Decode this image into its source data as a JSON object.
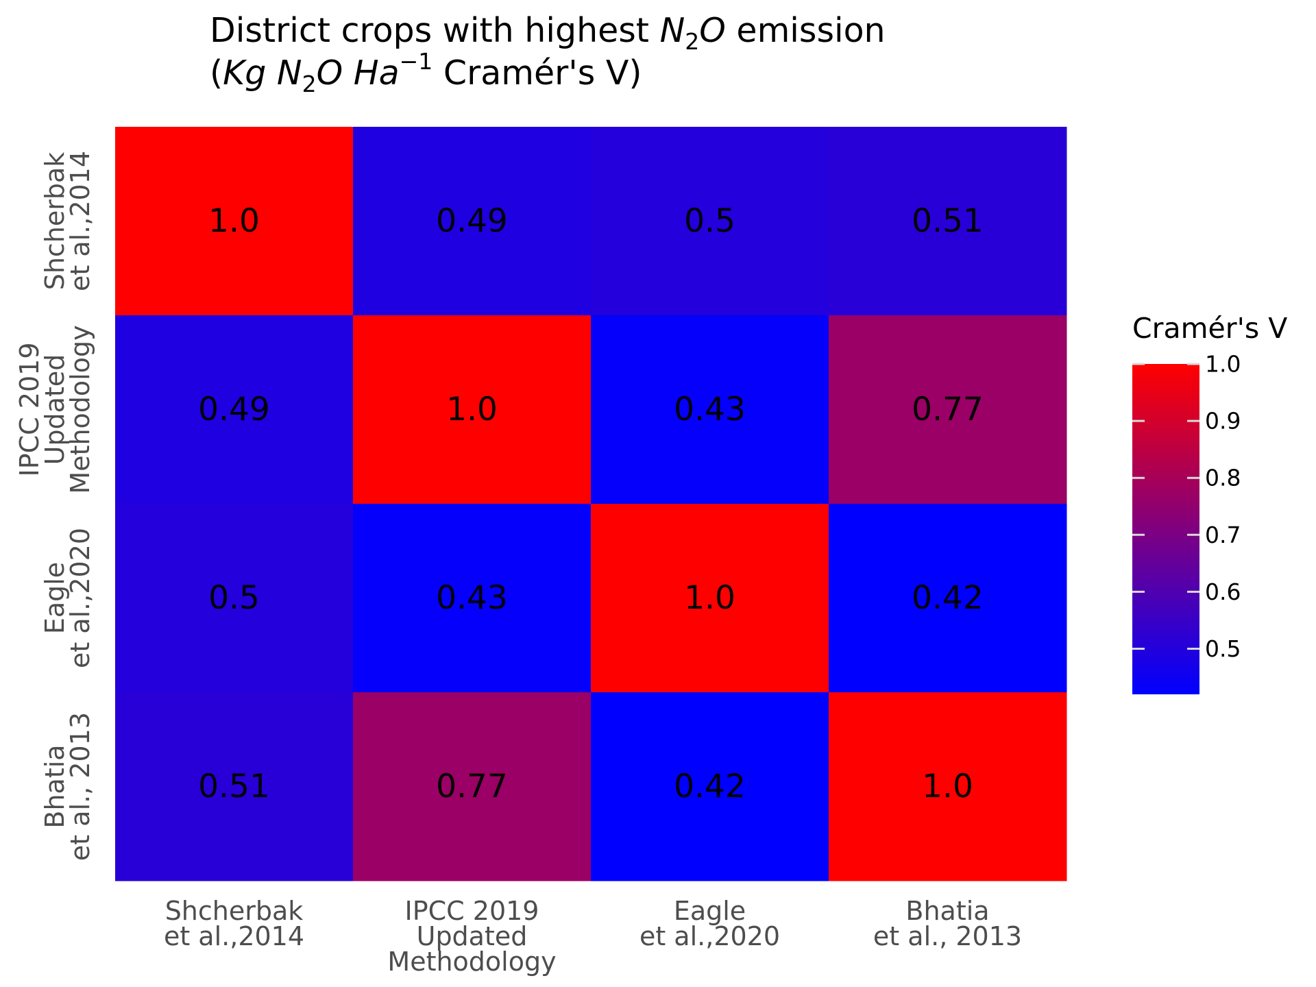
{
  "chart_data": {
    "type": "heatmap",
    "title_line1": {
      "pre": "District crops with highest ",
      "sym": "N",
      "sub": "2",
      "sym2": "O",
      "post": " emission"
    },
    "title_line2": {
      "open": "(",
      "kg": "Kg N",
      "sub": "2",
      "o_ha": "O Ha",
      "sup": "−1",
      "post": " Cramér's V)"
    },
    "x_categories": [
      [
        "Shcherbak",
        "et al.,2014"
      ],
      [
        "IPCC 2019",
        "Updated",
        "Methodology"
      ],
      [
        "Eagle",
        "et al.,2020"
      ],
      [
        "Bhatia",
        "et al., 2013"
      ]
    ],
    "y_categories": [
      [
        "Shcherbak",
        "et al.,2014"
      ],
      [
        "IPCC 2019",
        "Updated",
        "Methodology"
      ],
      [
        "Eagle",
        "et al.,2020"
      ],
      [
        "Bhatia",
        "et al., 2013"
      ]
    ],
    "values": [
      [
        1.0,
        0.49,
        0.5,
        0.51
      ],
      [
        0.49,
        1.0,
        0.43,
        0.77
      ],
      [
        0.5,
        0.43,
        1.0,
        0.42
      ],
      [
        0.51,
        0.77,
        0.42,
        1.0
      ]
    ],
    "labels": [
      [
        "1.0",
        "0.49",
        "0.5",
        "0.51"
      ],
      [
        "0.49",
        "1.0",
        "0.43",
        "0.77"
      ],
      [
        "0.5",
        "0.43",
        "1.0",
        "0.42"
      ],
      [
        "0.51",
        "0.77",
        "0.42",
        "1.0"
      ]
    ],
    "colorscale": {
      "low": "#0000ff",
      "high": "#ff0000",
      "min": 0.42,
      "max": 1.0
    },
    "legend": {
      "title": "Cramér's V",
      "ticks": [
        0.5,
        0.6,
        0.7,
        0.8,
        0.9,
        1.0
      ],
      "tick_labels": [
        "0.5",
        "0.6",
        "0.7",
        "0.8",
        "0.9",
        "1.0"
      ],
      "placement": "right"
    }
  }
}
